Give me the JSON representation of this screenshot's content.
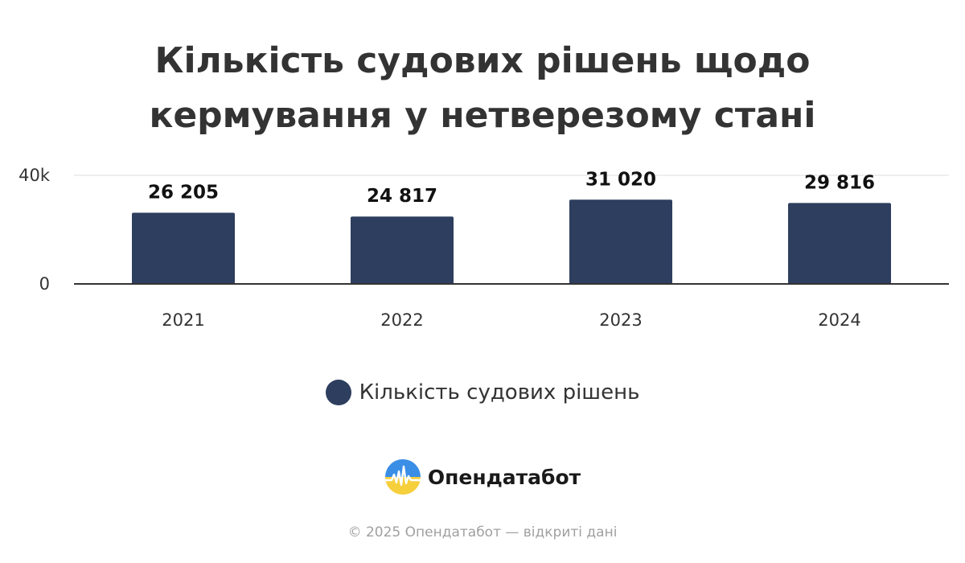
{
  "title_lines": [
    "Кількість судових рішень щодо",
    "кермування у нетверезому стані"
  ],
  "legend": {
    "label": "Кількість судових рішень",
    "color": "#2d3e5e"
  },
  "brand": {
    "name": "Опендатабот",
    "logo_icon": "opendatabot-logo-icon"
  },
  "footer": "© 2025 Опендатабот — відкриті дані",
  "colors": {
    "bar": "#2d3e5e",
    "text": "#333333",
    "grid": "#dddddd",
    "axis": "#333333"
  },
  "chart_data": {
    "type": "bar",
    "title": "Кількість судових рішень щодо кермування у нетверезому стані",
    "categories": [
      "2021",
      "2022",
      "2023",
      "2024"
    ],
    "series": [
      {
        "name": "Кількість судових рішень",
        "values": [
          26205,
          24817,
          31020,
          29816
        ]
      }
    ],
    "data_labels": [
      "26 205",
      "24 817",
      "31 020",
      "29 816"
    ],
    "yticks": [
      0,
      40000
    ],
    "ytick_labels": [
      "0",
      "40k"
    ],
    "ylim": [
      0,
      40000
    ],
    "xlabel": "",
    "ylabel": "",
    "grid": true,
    "legend_position": "bottom"
  }
}
